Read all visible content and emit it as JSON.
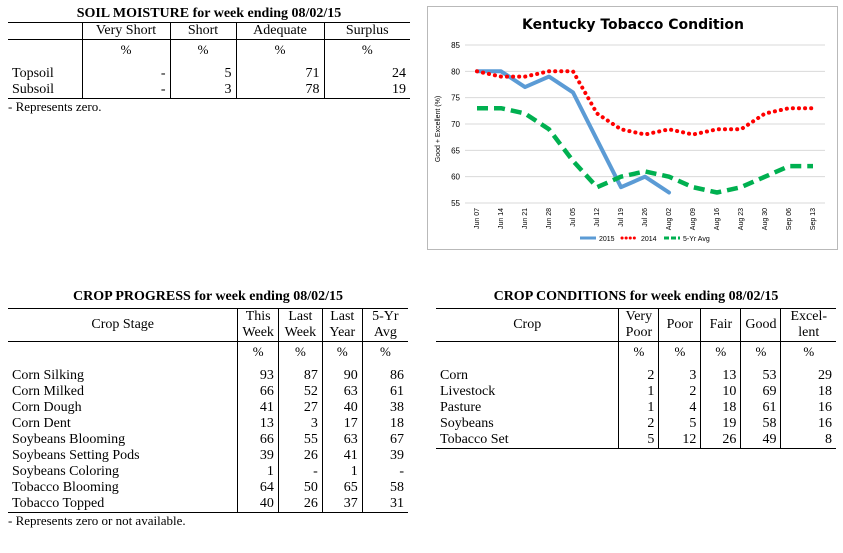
{
  "soil": {
    "title": "SOIL MOISTURE for week ending 08/02/15",
    "columns": [
      "Very Short",
      "Short",
      "Adequate",
      "Surplus"
    ],
    "pct": [
      "%",
      "%",
      "%",
      "%"
    ],
    "rows": [
      {
        "label": "Topsoil",
        "values": [
          "-",
          "5",
          "71",
          "24"
        ]
      },
      {
        "label": "Subsoil",
        "values": [
          "-",
          "3",
          "78",
          "19"
        ]
      }
    ],
    "note": "- Represents zero."
  },
  "progress": {
    "title": "CROP PROGRESS for week ending 08/02/15",
    "stage_header": "Crop Stage",
    "columns": [
      [
        "This",
        "Week"
      ],
      [
        "Last",
        "Week"
      ],
      [
        "Last",
        "Year"
      ],
      [
        "5-Yr",
        "Avg"
      ]
    ],
    "pct": [
      "%",
      "%",
      "%",
      "%"
    ],
    "rows": [
      {
        "label": "Corn Silking",
        "values": [
          "93",
          "87",
          "90",
          "86"
        ]
      },
      {
        "label": "Corn Milked",
        "values": [
          "66",
          "52",
          "63",
          "61"
        ]
      },
      {
        "label": "Corn Dough",
        "values": [
          "41",
          "27",
          "40",
          "38"
        ]
      },
      {
        "label": "Corn Dent",
        "values": [
          "13",
          "3",
          "17",
          "18"
        ]
      },
      {
        "label": "Soybeans Blooming",
        "values": [
          "66",
          "55",
          "63",
          "67"
        ]
      },
      {
        "label": "Soybeans Setting Pods",
        "values": [
          "39",
          "26",
          "41",
          "39"
        ]
      },
      {
        "label": "Soybeans Coloring",
        "values": [
          "1",
          "-",
          "1",
          "-"
        ]
      },
      {
        "label": "Tobacco Blooming",
        "values": [
          "64",
          "50",
          "65",
          "58"
        ]
      },
      {
        "label": "Tobacco Topped",
        "values": [
          "40",
          "26",
          "37",
          "31"
        ]
      }
    ],
    "note": "- Represents zero or not available."
  },
  "conditions": {
    "title": "CROP CONDITIONS for week ending 08/02/15",
    "crop_header": "Crop",
    "columns": [
      [
        "Very",
        "Poor"
      ],
      [
        "Poor"
      ],
      [
        "Fair"
      ],
      [
        "Good"
      ],
      [
        "Excel-",
        "lent"
      ]
    ],
    "pct": [
      "%",
      "%",
      "%",
      "%",
      "%"
    ],
    "rows": [
      {
        "label": "Corn",
        "values": [
          "2",
          "3",
          "13",
          "53",
          "29"
        ]
      },
      {
        "label": "Livestock",
        "values": [
          "1",
          "2",
          "10",
          "69",
          "18"
        ]
      },
      {
        "label": "Pasture",
        "values": [
          "1",
          "4",
          "18",
          "61",
          "16"
        ]
      },
      {
        "label": "Soybeans",
        "values": [
          "2",
          "5",
          "19",
          "58",
          "16"
        ]
      },
      {
        "label": "Tobacco Set",
        "values": [
          "5",
          "12",
          "26",
          "49",
          "8"
        ]
      }
    ]
  },
  "chart_data": {
    "type": "line",
    "title": "Kentucky Tobacco Condition",
    "ylabel": "Good + Excellent (%)",
    "xlabel": "",
    "ylim": [
      55,
      85
    ],
    "yticks": [
      55,
      60,
      65,
      70,
      75,
      80,
      85
    ],
    "grid": true,
    "legend": "bottom",
    "categories": [
      "Jun 07",
      "Jun 14",
      "Jun 21",
      "Jun 28",
      "Jul 05",
      "Jul 12",
      "Jul 19",
      "Jul 26",
      "Aug 02",
      "Aug 09",
      "Aug 16",
      "Aug 23",
      "Aug 30",
      "Sep 06",
      "Sep 13"
    ],
    "series": [
      {
        "name": "2015",
        "color": "#5b9bd5",
        "style": "solid",
        "values": [
          80,
          80,
          77,
          79,
          76,
          67,
          58,
          60,
          57,
          null,
          null,
          null,
          null,
          null,
          null
        ]
      },
      {
        "name": "2014",
        "color": "#ff0000",
        "style": "dotted",
        "values": [
          80,
          79,
          79,
          80,
          80,
          72,
          69,
          68,
          69,
          68,
          69,
          69,
          72,
          73,
          73
        ]
      },
      {
        "name": "5-Yr Avg",
        "color": "#00b050",
        "style": "dashed",
        "values": [
          73,
          73,
          72,
          69,
          63,
          58,
          60,
          61,
          60,
          58,
          57,
          58,
          60,
          62,
          62
        ]
      }
    ]
  }
}
